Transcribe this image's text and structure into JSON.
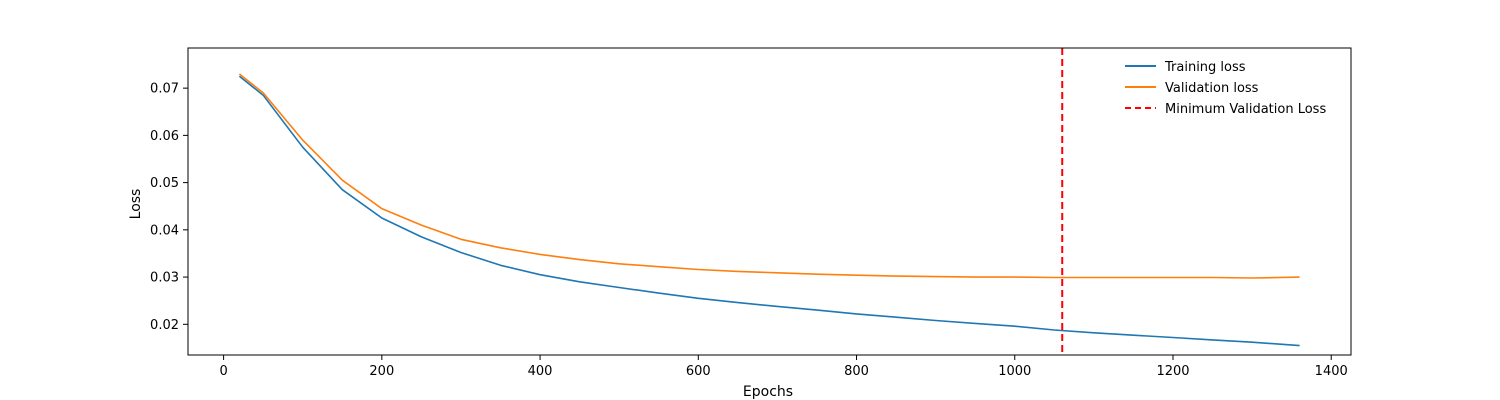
{
  "chart_data": {
    "type": "line",
    "title": "",
    "xlabel": "Epochs",
    "ylabel": "Loss",
    "xlim": [
      -45,
      1425
    ],
    "ylim": [
      0.0135,
      0.0785
    ],
    "xticks": [
      0,
      200,
      400,
      600,
      800,
      1000,
      1200,
      1400
    ],
    "yticks": [
      0.02,
      0.03,
      0.04,
      0.05,
      0.06,
      0.07
    ],
    "xtick_labels": [
      "0",
      "200",
      "400",
      "600",
      "800",
      "1000",
      "1200",
      "1400"
    ],
    "ytick_labels": [
      "0.02",
      "0.03",
      "0.04",
      "0.05",
      "0.06",
      "0.07"
    ],
    "grid": false,
    "legend_position": "top-right",
    "series": [
      {
        "name": "Training loss",
        "color": "#1f77b4",
        "style": "solid",
        "x": [
          20,
          50,
          100,
          150,
          200,
          250,
          300,
          350,
          400,
          450,
          500,
          550,
          600,
          650,
          700,
          750,
          800,
          850,
          900,
          950,
          1000,
          1050,
          1100,
          1150,
          1200,
          1250,
          1300,
          1360
        ],
        "y": [
          0.0725,
          0.0685,
          0.0575,
          0.0485,
          0.0425,
          0.0385,
          0.0352,
          0.0325,
          0.0305,
          0.029,
          0.0278,
          0.0266,
          0.0255,
          0.0246,
          0.0238,
          0.023,
          0.0222,
          0.0215,
          0.0208,
          0.0202,
          0.0196,
          0.0188,
          0.0182,
          0.0177,
          0.0172,
          0.0167,
          0.0162,
          0.0155
        ]
      },
      {
        "name": "Validation loss",
        "color": "#ff7f0e",
        "style": "solid",
        "x": [
          20,
          50,
          100,
          150,
          200,
          250,
          300,
          350,
          400,
          450,
          500,
          550,
          600,
          650,
          700,
          750,
          800,
          850,
          900,
          950,
          1000,
          1050,
          1100,
          1150,
          1200,
          1250,
          1300,
          1360
        ],
        "y": [
          0.073,
          0.069,
          0.059,
          0.0505,
          0.0445,
          0.041,
          0.038,
          0.0362,
          0.0348,
          0.0337,
          0.0328,
          0.0322,
          0.0316,
          0.0312,
          0.0309,
          0.0306,
          0.0304,
          0.0302,
          0.0301,
          0.03,
          0.03,
          0.0299,
          0.0299,
          0.0299,
          0.0299,
          0.0299,
          0.0298,
          0.03
        ]
      }
    ],
    "vlines": [
      {
        "name": "Minimum Validation Loss",
        "x": 1060,
        "color": "#ff0000",
        "style": "dashed"
      }
    ]
  }
}
